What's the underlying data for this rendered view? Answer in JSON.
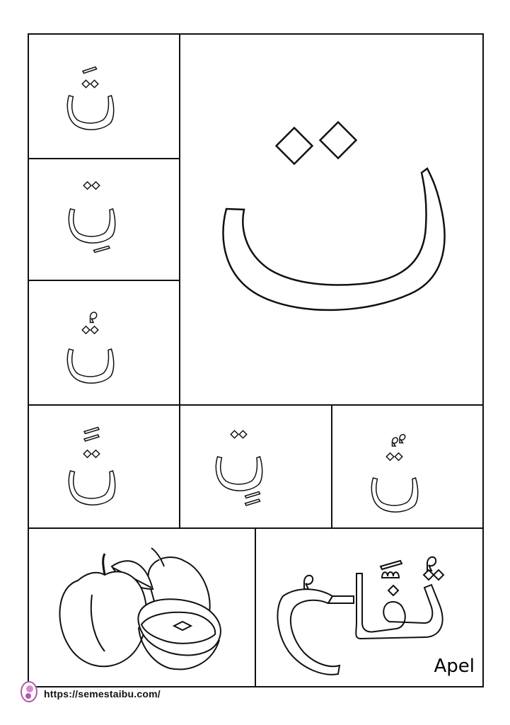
{
  "word": {
    "latin": "Apel"
  },
  "footer": {
    "url": "https://semestaibu.com/"
  },
  "icons": {
    "logo": "semestaibu-logo-icon",
    "picture": "apple-illustration-icon"
  }
}
